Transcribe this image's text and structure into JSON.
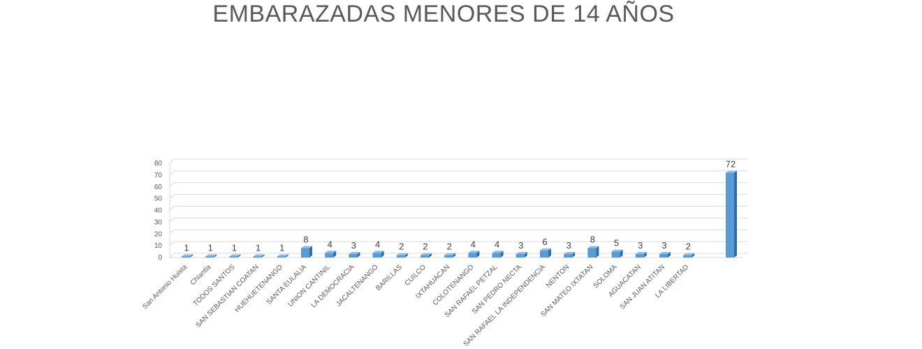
{
  "chart_data": {
    "type": "bar",
    "title": "EMBARAZADAS MENORES DE 14 AÑOS",
    "xlabel": "",
    "ylabel": "",
    "ylim": [
      0,
      80
    ],
    "yticks": [
      0,
      10,
      20,
      30,
      40,
      50,
      60,
      70,
      80
    ],
    "grid": true,
    "legend": "none",
    "bar_color": "#5b9bd5",
    "categories": [
      "San Antonio Huista",
      "Chiantla",
      "TODOS SANTOS",
      "SAN SEBASTIAN COATAN",
      "HUEHUETENANGO",
      "SANTA EULALIA",
      "UNION CANTINIL",
      "LA DEMOCRACIA",
      "JACALTENANGO",
      "BARILLAS",
      "CUILCO",
      "IXTAHUACAN",
      "COLOTENANGO",
      "SAN RAFAEL PETZAL",
      "SAN PEDRO NECTA",
      "SAN RAFAEL LA INDEPENDENCIA",
      "NENTON",
      "SAN MATEO IXTATAN",
      "SOLOMA",
      "AGUACATAN",
      "SAN JUAN ATITAN",
      "LA LIBERTAD",
      ""
    ],
    "values": [
      1,
      1,
      1,
      1,
      1,
      8,
      4,
      3,
      4,
      2,
      2,
      2,
      4,
      4,
      3,
      6,
      3,
      8,
      5,
      3,
      3,
      2,
      72
    ]
  }
}
